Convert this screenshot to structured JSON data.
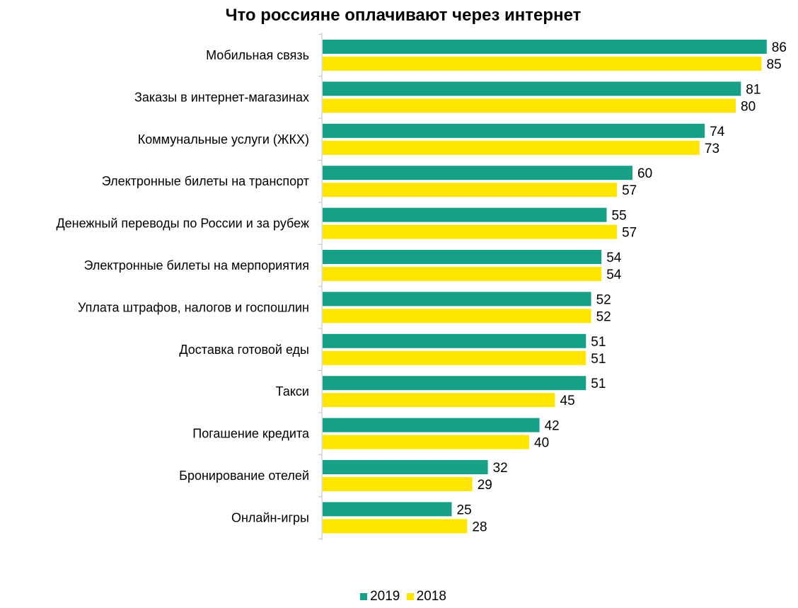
{
  "chart_data": {
    "type": "bar",
    "orientation": "horizontal",
    "title": "Что россияне оплачивают через интернет",
    "categories": [
      "Мобильная связь",
      "Заказы в интернет-магазинах",
      "Коммунальные услуги (ЖКХ)",
      "Электронные билеты на транспорт",
      "Денежный переводы по России и за рубеж",
      "Электронные билеты на мерпориятия",
      "Уплата штрафов, налогов и госпошлин",
      "Доставка готовой еды",
      "Такси",
      "Погашение  кредита",
      "Бронирование отелей",
      "Онлайн-игры"
    ],
    "series": [
      {
        "name": "2019",
        "color": "#16a085",
        "values": [
          86,
          81,
          74,
          60,
          55,
          54,
          52,
          51,
          51,
          42,
          32,
          25
        ]
      },
      {
        "name": "2018",
        "color": "#ffe600",
        "values": [
          85,
          80,
          73,
          57,
          57,
          54,
          52,
          51,
          45,
          40,
          29,
          28
        ]
      }
    ],
    "xlim": [
      0,
      86
    ],
    "grid": false,
    "data_labels": true,
    "legend_position": "bottom"
  }
}
